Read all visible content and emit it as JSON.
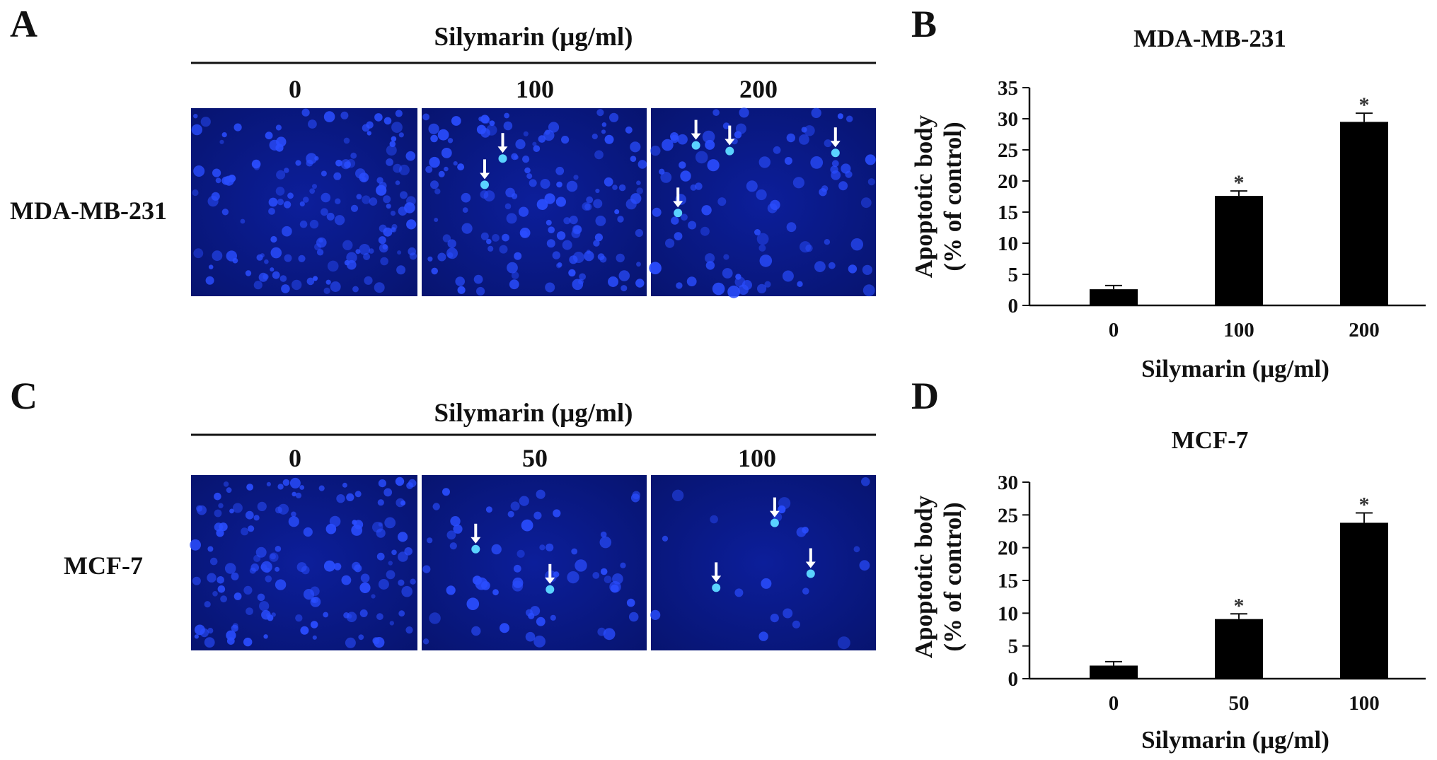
{
  "panel_a": {
    "letter": "A",
    "header": "Silymarin (μg/ml)",
    "doses": [
      "0",
      "100",
      "200"
    ],
    "cell_line": "MDA-MB-231"
  },
  "panel_c": {
    "letter": "C",
    "header": "Silymarin (μg/ml)",
    "doses": [
      "0",
      "50",
      "100"
    ],
    "cell_line": "MCF-7"
  },
  "colors": {
    "bar": "#000000",
    "micrograph_bg": "#0a1a86",
    "nucleus": "#2a4dff",
    "apoptotic_nucleus": "#5ad2ff",
    "arrow": "#ffffff"
  },
  "chart_data": [
    {
      "panel": "B",
      "type": "bar",
      "title": "MDA-MB-231",
      "categories": [
        "0",
        "100",
        "200"
      ],
      "values": [
        2.6,
        17.6,
        29.5
      ],
      "errors": [
        0.6,
        0.8,
        1.4
      ],
      "significance": [
        "",
        "*",
        "*"
      ],
      "xlabel": "Silymarin (μg/ml)",
      "ylabel_line1": "Apoptotic body",
      "ylabel_line2": "(% of control)",
      "ylim": [
        0,
        35
      ],
      "yticks": [
        "0",
        "5",
        "10",
        "15",
        "20",
        "25",
        "30",
        "35"
      ]
    },
    {
      "panel": "D",
      "type": "bar",
      "title": "MCF-7",
      "categories": [
        "0",
        "50",
        "100"
      ],
      "values": [
        2.0,
        9.1,
        23.8
      ],
      "errors": [
        0.6,
        0.8,
        1.5
      ],
      "significance": [
        "",
        "*",
        "*"
      ],
      "xlabel": "Silymarin (μg/ml)",
      "ylabel_line1": "Apoptotic body",
      "ylabel_line2": "(% of control)",
      "ylim": [
        0,
        30
      ],
      "yticks": [
        "0",
        "5",
        "10",
        "15",
        "20",
        "25",
        "30"
      ]
    }
  ]
}
